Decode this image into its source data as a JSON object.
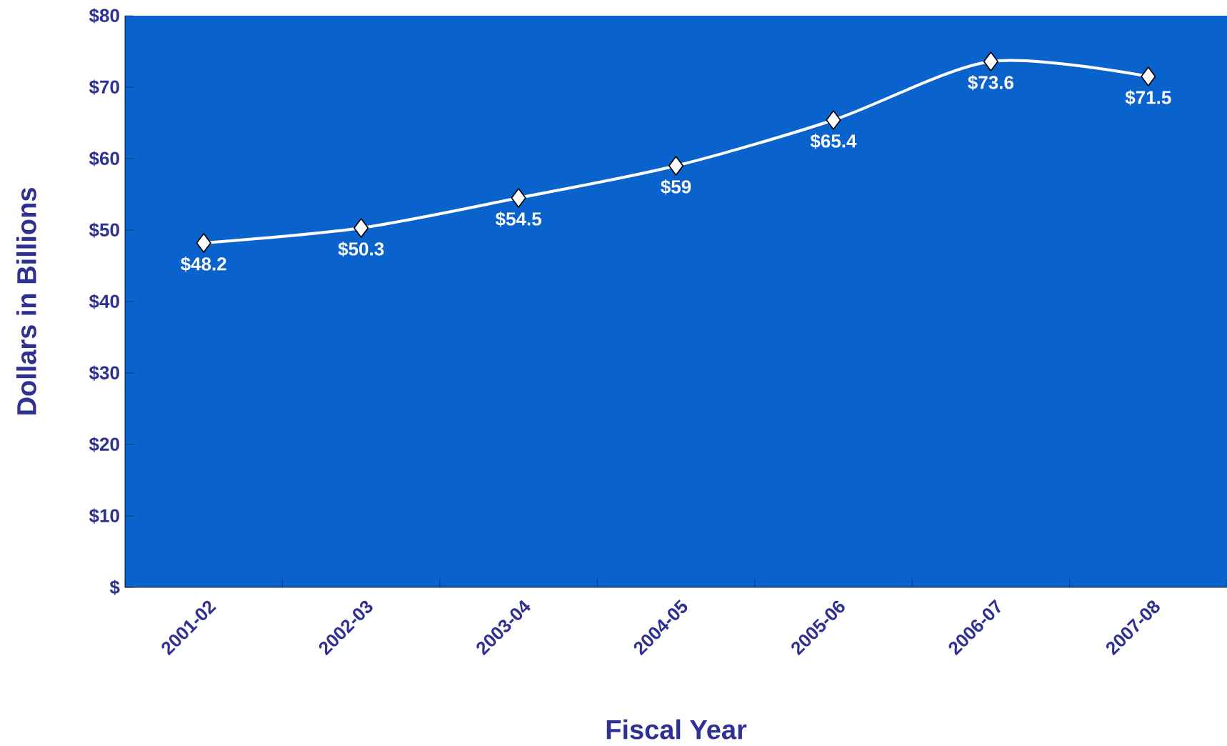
{
  "chart_data": {
    "type": "line",
    "xlabel": "Fiscal Year",
    "ylabel": "Dollars in Billions",
    "categories": [
      "2001-02",
      "2002-03",
      "2003-04",
      "2004-05",
      "2005-06",
      "2006-07",
      "2007-08"
    ],
    "values": [
      48.2,
      50.3,
      54.5,
      59,
      65.4,
      73.6,
      71.5
    ],
    "value_labels": [
      "$48.2",
      "$50.3",
      "$54.5",
      "$59",
      "$65.4",
      "$73.6",
      "$71.5"
    ],
    "color": "#ffffff",
    "marker": "diamond",
    "line_style": "solid",
    "grid": false,
    "ylim": [
      0,
      80
    ],
    "yticks": [
      {
        "value": 0,
        "label": "$"
      },
      {
        "value": 10,
        "label": "$10"
      },
      {
        "value": 20,
        "label": "$20"
      },
      {
        "value": 30,
        "label": "$30"
      },
      {
        "value": 40,
        "label": "$40"
      },
      {
        "value": 50,
        "label": "$50"
      },
      {
        "value": 60,
        "label": "$60"
      },
      {
        "value": 70,
        "label": "$70"
      },
      {
        "value": 80,
        "label": "$80"
      }
    ]
  }
}
